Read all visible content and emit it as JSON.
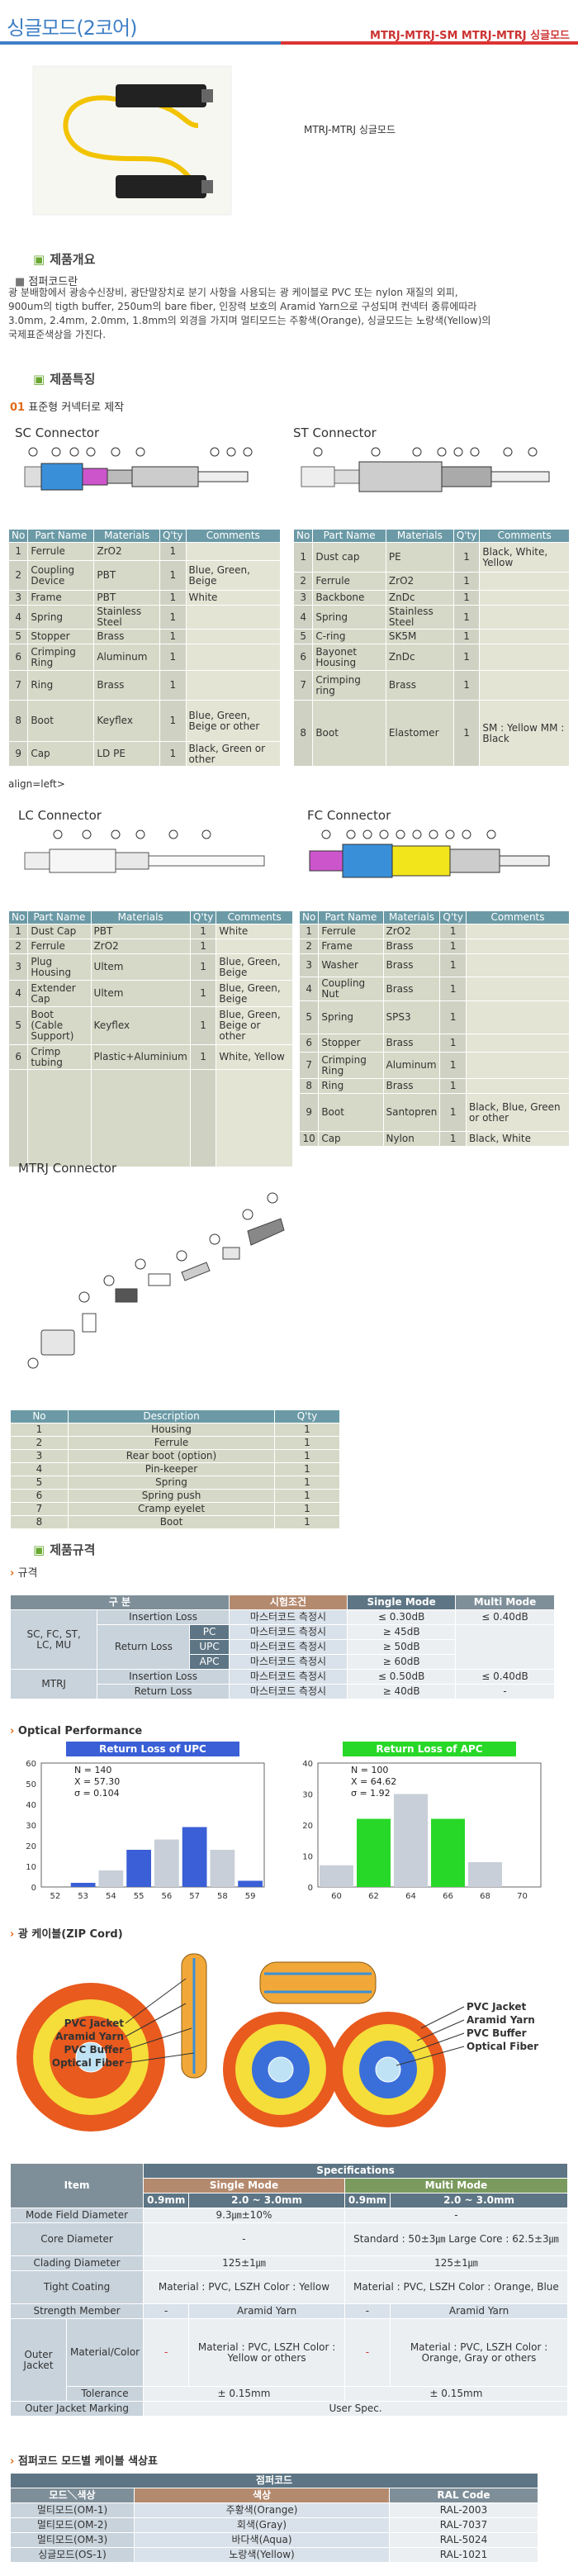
{
  "header": {
    "title": "싱글모드(2코어)",
    "code": "MTRJ-MTRJ-SM MTRJ-MTRJ 싱글모드",
    "hero_caption": "MTRJ-MTRJ 싱글모드"
  },
  "overview": {
    "heading": "제품개요",
    "subheading": "점퍼코드란",
    "text": [
      "광 분배함에서 광송수신장비, 광단말장치로 분기 사항을 사용되는 광 케이블로 PVC 또는 nylon 재질의 외피,",
      "900um의 tigth buffer, 250um의 bare fiber, 인장력 보호의 Aramid Yarn으로 구성되며 컨넥터 종류에따라",
      "3.0mm, 2.4mm, 2.0mm, 1.8mm의 외경을 가지며 멀티모드는 주황색(Orange), 싱글모드는 노랑색(Yellow)의",
      "국제표준색상을 가진다."
    ]
  },
  "features": {
    "heading": "제품특징",
    "subheading_num": "01",
    "subheading": "표준형 커넥터로 제작"
  },
  "sc": {
    "title": "SC Connector",
    "headers": [
      "No",
      "Part Name",
      "Materials",
      "Q'ty",
      "Comments"
    ],
    "rows": [
      [
        "1",
        "Ferrule",
        "ZrO2",
        "1",
        ""
      ],
      [
        "2",
        "Coupling Device",
        "PBT",
        "1",
        "Blue, Green, Beige"
      ],
      [
        "3",
        "Frame",
        "PBT",
        "1",
        "White"
      ],
      [
        "4",
        "Spring",
        "Stainless Steel",
        "1",
        ""
      ],
      [
        "5",
        "Stopper",
        "Brass",
        "1",
        ""
      ],
      [
        "6",
        "Crimping Ring",
        "Aluminum",
        "1",
        ""
      ],
      [
        "7",
        "Ring",
        "Brass",
        "1",
        ""
      ],
      [
        "8",
        "Boot",
        "Keyflex",
        "1",
        "Blue, Green, Beige or other"
      ],
      [
        "9",
        "Cap",
        "LD PE",
        "1",
        "Black, Green or other"
      ]
    ]
  },
  "st": {
    "title": "ST Connector",
    "headers": [
      "No",
      "Part Name",
      "Materials",
      "Q'ty",
      "Comments"
    ],
    "rows": [
      [
        "1",
        "Dust cap",
        "PE",
        "1",
        "Black, White, Yellow"
      ],
      [
        "2",
        "Ferrule",
        "ZrO2",
        "1",
        ""
      ],
      [
        "3",
        "Backbone",
        "ZnDc",
        "1",
        ""
      ],
      [
        "4",
        "Spring",
        "Stainless Steel",
        "1",
        ""
      ],
      [
        "5",
        "C-ring",
        "SK5M",
        "1",
        ""
      ],
      [
        "6",
        "Bayonet Housing",
        "ZnDc",
        "1",
        ""
      ],
      [
        "7",
        "Crimping ring",
        "Brass",
        "1",
        ""
      ],
      [
        "8",
        "Boot",
        "Elastomer",
        "1",
        "SM : Yellow MM : Black"
      ]
    ]
  },
  "stray_text": "align=left>",
  "lc": {
    "title": "LC Connector",
    "headers": [
      "No",
      "Part Name",
      "Materials",
      "Q'ty",
      "Comments"
    ],
    "rows": [
      [
        "1",
        "Dust Cap",
        "PBT",
        "1",
        "White"
      ],
      [
        "2",
        "Ferrule",
        "ZrO2",
        "1",
        ""
      ],
      [
        "3",
        "Plug Housing",
        "Ultem",
        "1",
        "Blue, Green, Beige"
      ],
      [
        "4",
        "Extender Cap",
        "Ultem",
        "1",
        "Blue, Green, Beige"
      ],
      [
        "5",
        "Boot (Cable Support)",
        "Keyflex",
        "1",
        "Blue, Green, Beige or other"
      ],
      [
        "6",
        "Crimp tubing",
        "Plastic+Aluminium",
        "1",
        "White, Yellow"
      ]
    ]
  },
  "fc": {
    "title": "FC Connector",
    "headers": [
      "No",
      "Part Name",
      "Materials",
      "Q'ty",
      "Comments"
    ],
    "rows": [
      [
        "1",
        "Ferrule",
        "ZrO2",
        "1",
        ""
      ],
      [
        "2",
        "Frame",
        "Brass",
        "1",
        ""
      ],
      [
        "3",
        "Washer",
        "Brass",
        "1",
        ""
      ],
      [
        "4",
        "Coupling Nut",
        "Brass",
        "1",
        ""
      ],
      [
        "5",
        "Spring",
        "SPS3",
        "1",
        ""
      ],
      [
        "6",
        "Stopper",
        "Brass",
        "1",
        ""
      ],
      [
        "7",
        "Crimping Ring",
        "Aluminum",
        "1",
        ""
      ],
      [
        "8",
        "Ring",
        "Brass",
        "1",
        ""
      ],
      [
        "9",
        "Boot",
        "Santopren",
        "1",
        "Black, Blue, Green or other"
      ],
      [
        "10",
        "Cap",
        "Nylon",
        "1",
        "Black, White"
      ]
    ]
  },
  "mtrj": {
    "title": "MTRJ Connector",
    "headers": [
      "No",
      "Description",
      "Q'ty"
    ],
    "rows": [
      [
        "1",
        "Housing",
        "1"
      ],
      [
        "2",
        "Ferrule",
        "1"
      ],
      [
        "3",
        "Rear boot (option)",
        "1"
      ],
      [
        "4",
        "Pin-keeper",
        "1"
      ],
      [
        "5",
        "Spring",
        "1"
      ],
      [
        "6",
        "Spring push",
        "1"
      ],
      [
        "7",
        "Cramp eyelet",
        "1"
      ],
      [
        "8",
        "Boot",
        "1"
      ]
    ]
  },
  "specs": {
    "heading": "제품규격",
    "subheading": "규격",
    "headers": [
      "구 분",
      "",
      "",
      "시험조건",
      "Single Mode",
      "Multi Mode"
    ],
    "groups": [
      "SC, FC, ST,",
      "LC, MU",
      "MTRJ"
    ],
    "rows": [
      [
        "Insertion Loss",
        "",
        "마스터코드 측정시",
        "≤ 0.30dB",
        "≤ 0.40dB"
      ],
      [
        "Return Loss",
        "PC",
        "마스터코드 측정시",
        "≥ 45dB",
        ""
      ],
      [
        "",
        "UPC",
        "마스터코드 측정시",
        "≥ 50dB",
        ""
      ],
      [
        "",
        "APC",
        "마스터코드 측정시",
        "≥ 60dB",
        ""
      ],
      [
        "Insertion Loss",
        "",
        "마스터코드 측정시",
        "≤ 0.50dB",
        "≤ 0.40dB"
      ],
      [
        "Return Loss",
        "",
        "마스터코드 측정시",
        "≥ 40dB",
        "-"
      ]
    ]
  },
  "optical": {
    "heading": "Optical Performance"
  },
  "chart_data": [
    {
      "type": "bar",
      "title": "Return Loss of UPC",
      "categories": [
        "52",
        "53",
        "54",
        "55",
        "56",
        "57",
        "58",
        "59"
      ],
      "values": [
        0,
        2,
        8,
        18,
        23,
        29,
        18,
        3
      ],
      "ylim": [
        0,
        60
      ],
      "yticks": [
        "0",
        "10",
        "20",
        "30",
        "40",
        "50",
        "60"
      ],
      "stats": {
        "n": "N = 140",
        "x": "X  = 57.30",
        "s": "σ  = 0.104"
      },
      "colors": [
        "#3a5fd6",
        "#c8cfd8"
      ]
    },
    {
      "type": "bar",
      "title": "Return Loss of APC",
      "categories": [
        "60",
        "62",
        "64",
        "66",
        "68",
        "70"
      ],
      "values": [
        7,
        22,
        30,
        22,
        8,
        0
      ],
      "ylim": [
        0,
        40
      ],
      "yticks": [
        "0",
        "10",
        "20",
        "30",
        "40"
      ],
      "stats": {
        "n": "N = 100",
        "x": "X = 64.62",
        "s": "σ = 1.92"
      },
      "colors": [
        "#28d828",
        "#c8cfd8"
      ]
    }
  ],
  "zip": {
    "heading": "광 케이블(ZIP Cord)",
    "labels1": [
      "PVC Jacket",
      "Aramid Yarn",
      "PVC Buffer",
      "Optical Fiber"
    ],
    "labels2": [
      "PVC Jacket",
      "Aramid Yarn",
      "PVC Buffer",
      "Optical Fiber"
    ]
  },
  "spec2": {
    "head": [
      "Item",
      "Specifications"
    ],
    "mode": [
      "Single Mode",
      "Multi Mode"
    ],
    "dia": [
      "0.9mm",
      "2.0 ~ 3.0mm",
      "0.9mm",
      "2.0 ~ 3.0mm"
    ],
    "rows": {
      "mfd": [
        "Mode Field Diameter",
        "9.3㎛±10%",
        "-"
      ],
      "core": [
        "Core Diameter",
        "-",
        "Standard : 50±3㎛  Large Core : 62.5±3㎛"
      ],
      "clad": [
        "Clading Diameter",
        "125±1㎛",
        "125±1㎛"
      ],
      "tight": [
        "Tight Coating",
        "Material : PVC, LSZH  Color : Yellow",
        "Material : PVC, LSZH  Color : Orange, Blue"
      ],
      "strength": [
        "Strength Member",
        "-",
        "Aramid Yarn",
        "-",
        "Aramid Yarn"
      ],
      "outer": [
        "Outer Jacket",
        "Material/Color",
        "-",
        "Material : PVC, LSZH  Color : Yellow or others",
        "-",
        "Material : PVC, LSZH  Color : Orange, Gray or others"
      ],
      "tol": [
        "Tolerance",
        "± 0.15mm",
        "± 0.15mm"
      ],
      "mark": [
        "Outer Jacket Marking",
        "User Spec."
      ]
    }
  },
  "colors_table": {
    "heading": "점퍼코드 모드별 케이블 색상표",
    "title": "점퍼코드",
    "headers": [
      "모드＼색상",
      "색상",
      "RAL Code"
    ],
    "rows": [
      [
        "멀티모드(OM-1)",
        "주황색(Orange)",
        "RAL-2003"
      ],
      [
        "멀티모드(OM-2)",
        "회색(Gray)",
        "RAL-7037"
      ],
      [
        "멀티모드(OM-3)",
        "바다색(Aqua)",
        "RAL-5024"
      ],
      [
        "싱글모드(OS-1)",
        "노랑색(Yellow)",
        "RAL-1021"
      ]
    ]
  }
}
